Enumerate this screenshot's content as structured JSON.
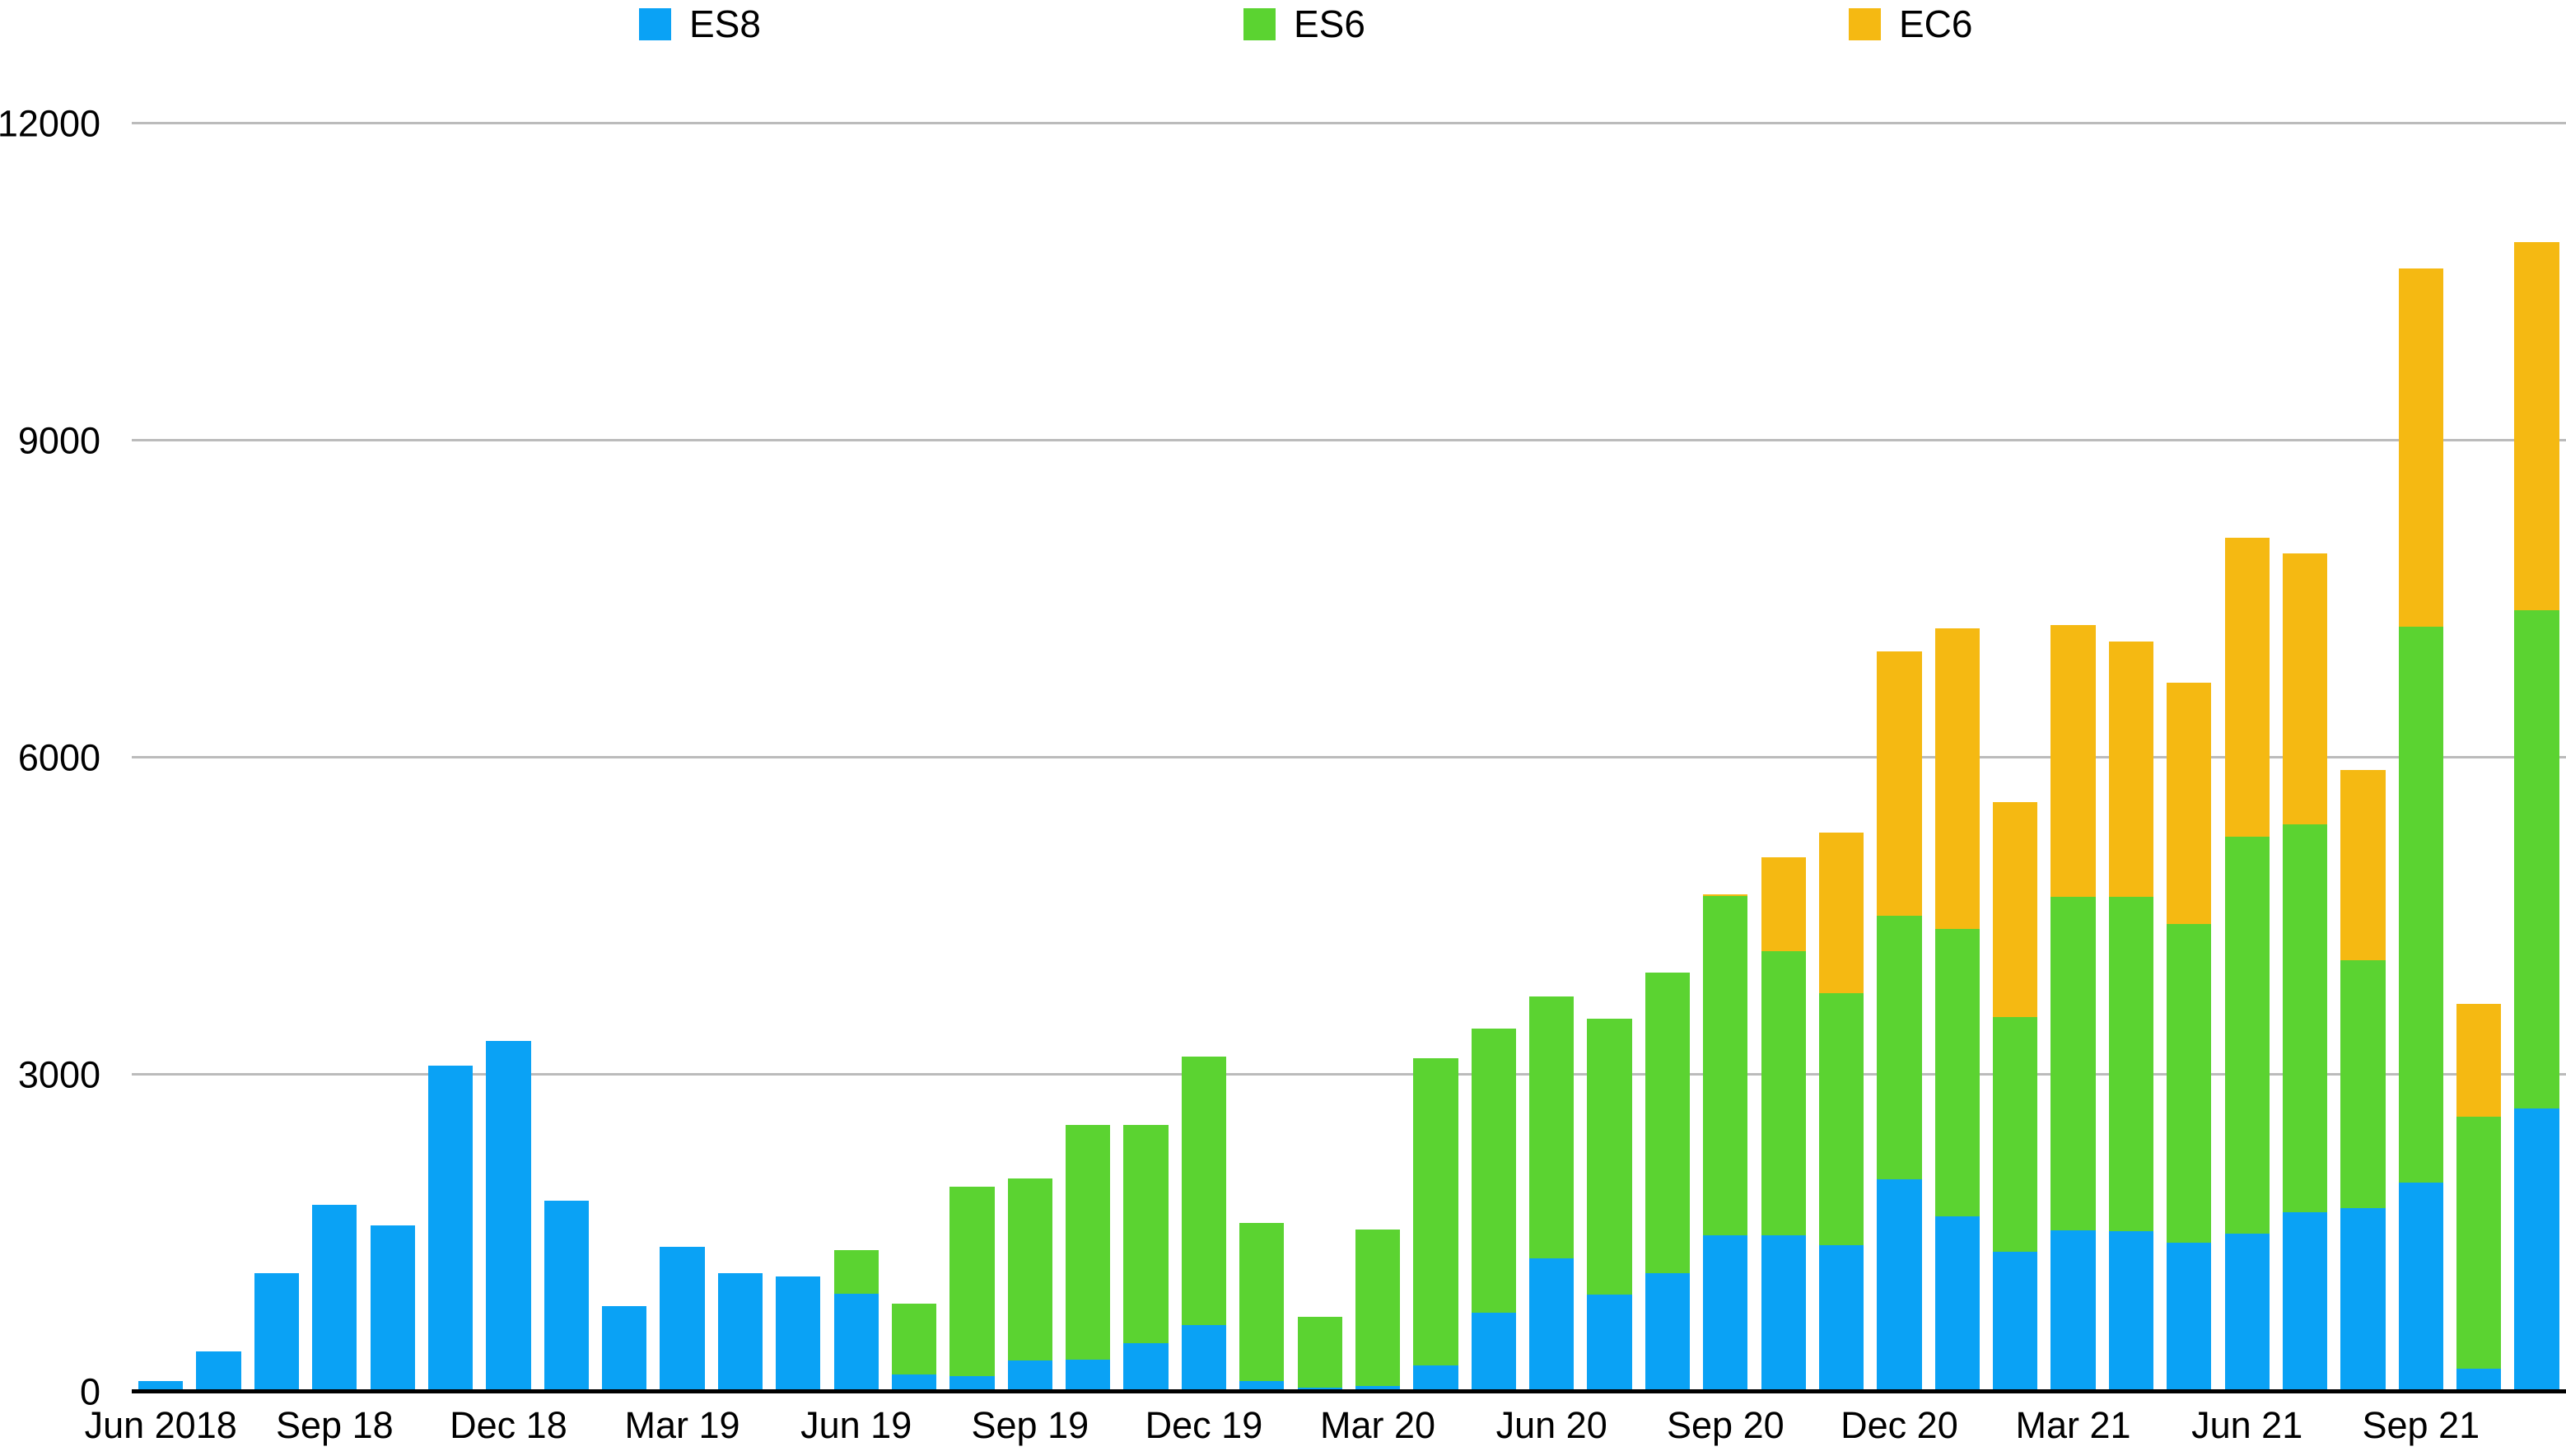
{
  "chart_data": {
    "type": "bar",
    "stacked": true,
    "title": "",
    "grid": true,
    "legend_position": "top",
    "background_color": "#ffffff",
    "gridline_color": "#bbbbbb",
    "axis_line_color": "#000000",
    "text_color": "#000000",
    "y_axis": {
      "min": 0,
      "max": 12000,
      "tick_interval": 3000,
      "ticks": [
        0,
        3000,
        6000,
        9000,
        12000
      ],
      "tick_labels": [
        "0",
        "3000",
        "6000",
        "9000",
        "12000"
      ]
    },
    "x_axis": {
      "tick_every": 3,
      "shown_tick_labels": [
        "Jun 2018",
        "Sep 18",
        "Dec 18",
        "Mar 19",
        "Jun 19",
        "Sep 19",
        "Dec 19",
        "Mar 20",
        "Jun 20",
        "Sep 20",
        "Dec 20",
        "Mar 21",
        "Jun 21",
        "Sep 21"
      ]
    },
    "categories": [
      "Jun 2018",
      "Jul 2018",
      "Aug 2018",
      "Sep 2018",
      "Oct 2018",
      "Nov 2018",
      "Dec 2018",
      "Jan 2019",
      "Feb 2019",
      "Mar 2019",
      "Apr 2019",
      "May 2019",
      "Jun 2019",
      "Jul 2019",
      "Aug 2019",
      "Sep 2019",
      "Oct 2019",
      "Nov 2019",
      "Dec 2019",
      "Jan 2020",
      "Feb 2020",
      "Mar 2020",
      "Apr 2020",
      "May 2020",
      "Jun 2020",
      "Jul 2020",
      "Aug 2020",
      "Sep 2020",
      "Oct 2020",
      "Nov 2020",
      "Dec 2020",
      "Jan 2021",
      "Feb 2021",
      "Mar 2021",
      "Apr 2021",
      "May 2021",
      "Jun 2021",
      "Jul 2021",
      "Aug 2021",
      "Sep 2021",
      "Oct 2021",
      "Nov 2021"
    ],
    "series": [
      {
        "name": "ES8",
        "color": "#0aa2f5",
        "values": [
          100,
          381,
          1121,
          1766,
          1573,
          3089,
          3318,
          1805,
          811,
          1373,
          1124,
          1089,
          927,
          164,
          146,
          293,
          306,
          461,
          633,
          105,
          36,
          54,
          248,
          751,
          1264,
          923,
          1125,
          1482,
          1477,
          1387,
          2009,
          1660,
          1327,
          1529,
          1523,
          1412,
          1498,
          1702,
          1738,
          1978,
          218,
          2683
        ]
      },
      {
        "name": "ES6",
        "color": "#5bd331",
        "values": [
          0,
          0,
          0,
          0,
          0,
          0,
          0,
          0,
          0,
          0,
          0,
          0,
          413,
          673,
          1797,
          1726,
          2220,
          2067,
          2537,
          1493,
          671,
          1479,
          2907,
          2685,
          2476,
          2610,
          2840,
          3210,
          2695,
          2386,
          2493,
          2720,
          2216,
          3152,
          3163,
          3017,
          3755,
          3669,
          2342,
          5260,
          2387,
          4713
        ]
      },
      {
        "name": "EC6",
        "color": "#f5b912",
        "values": [
          0,
          0,
          0,
          0,
          0,
          0,
          0,
          0,
          0,
          0,
          0,
          0,
          0,
          0,
          0,
          0,
          0,
          0,
          0,
          0,
          0,
          0,
          0,
          0,
          0,
          0,
          0,
          16,
          883,
          1518,
          2505,
          2845,
          2035,
          2576,
          2416,
          2282,
          2830,
          2560,
          1800,
          3390,
          1062,
          3482
        ]
      }
    ]
  }
}
